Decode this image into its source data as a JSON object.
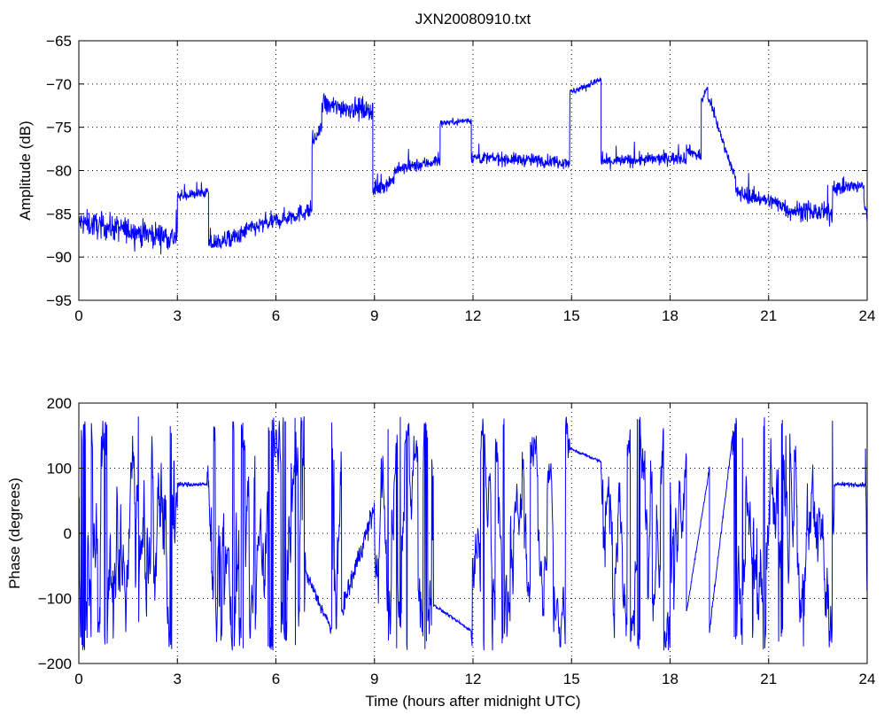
{
  "figure": {
    "title": "JXN20080910.txt"
  },
  "chart_data": [
    {
      "type": "line",
      "title": "JXN20080910.txt",
      "xlabel": "",
      "ylabel": "Amplitude (dB)",
      "xlim": [
        0,
        24
      ],
      "ylim": [
        -95,
        -65
      ],
      "xticks": [
        0,
        3,
        6,
        9,
        12,
        15,
        18,
        21,
        24
      ],
      "yticks": [
        -95,
        -90,
        -85,
        -80,
        -75,
        -70,
        -65
      ],
      "grid": true,
      "line_color": "#0000ff",
      "segments": [
        {
          "x0": 0.0,
          "x1": 3.0,
          "level_start": -86.0,
          "level_end": -87.8,
          "noise": 1.6
        },
        {
          "x0": 3.0,
          "x1": 3.95,
          "level_start": -83.0,
          "level_end": -82.5,
          "noise": 0.6
        },
        {
          "x0": 3.95,
          "x1": 5.0,
          "level_start": -88.5,
          "level_end": -87.5,
          "noise": 1.2
        },
        {
          "x0": 5.0,
          "x1": 7.1,
          "level_start": -87.0,
          "level_end": -84.5,
          "noise": 1.1
        },
        {
          "x0": 7.1,
          "x1": 7.4,
          "level_start": -77.0,
          "level_end": -75.0,
          "noise": 0.8
        },
        {
          "x0": 7.4,
          "x1": 8.95,
          "level_start": -72.5,
          "level_end": -73.0,
          "noise": 1.3
        },
        {
          "x0": 8.95,
          "x1": 9.6,
          "level_start": -82.5,
          "level_end": -81.0,
          "noise": 0.9
        },
        {
          "x0": 9.6,
          "x1": 11.0,
          "level_start": -80.0,
          "level_end": -78.8,
          "noise": 0.8
        },
        {
          "x0": 11.0,
          "x1": 11.95,
          "level_start": -74.5,
          "level_end": -74.2,
          "noise": 0.4
        },
        {
          "x0": 11.95,
          "x1": 14.95,
          "level_start": -78.5,
          "level_end": -79.0,
          "noise": 0.8
        },
        {
          "x0": 14.95,
          "x1": 15.9,
          "level_start": -71.0,
          "level_end": -69.5,
          "noise": 0.4
        },
        {
          "x0": 15.9,
          "x1": 18.5,
          "level_start": -79.0,
          "level_end": -78.5,
          "noise": 0.8
        },
        {
          "x0": 18.5,
          "x1": 18.95,
          "level_start": -77.5,
          "level_end": -78.5,
          "noise": 0.7
        },
        {
          "x0": 18.95,
          "x1": 19.15,
          "level_start": -72.0,
          "level_end": -70.3,
          "noise": 0.5
        },
        {
          "x0": 19.15,
          "x1": 20.0,
          "level_start": -71.5,
          "level_end": -81.0,
          "noise": 0.6
        },
        {
          "x0": 20.0,
          "x1": 21.5,
          "level_start": -82.5,
          "level_end": -84.0,
          "noise": 1.0
        },
        {
          "x0": 21.5,
          "x1": 22.95,
          "level_start": -84.5,
          "level_end": -85.0,
          "noise": 1.2
        },
        {
          "x0": 22.95,
          "x1": 23.9,
          "level_start": -82.0,
          "level_end": -81.8,
          "noise": 0.9
        },
        {
          "x0": 23.9,
          "x1": 24.0,
          "level_start": -83.5,
          "level_end": -85.5,
          "noise": 0.8
        }
      ]
    },
    {
      "type": "line",
      "title": "",
      "xlabel": "Time (hours after midnight UTC)",
      "ylabel": "Phase (degrees)",
      "xlim": [
        0,
        24
      ],
      "ylim": [
        -200,
        200
      ],
      "xticks": [
        0,
        3,
        6,
        9,
        12,
        15,
        18,
        21,
        24
      ],
      "yticks": [
        -200,
        -100,
        0,
        100,
        200
      ],
      "grid": true,
      "line_color": "#0000ff",
      "segments": [
        {
          "x0": 0.0,
          "x1": 3.0,
          "mode": "wrap",
          "rate": 26
        },
        {
          "x0": 3.0,
          "x1": 3.9,
          "mode": "steady",
          "value": 75,
          "noise": 6
        },
        {
          "x0": 3.9,
          "x1": 6.9,
          "mode": "wrap",
          "rate": 18
        },
        {
          "x0": 6.9,
          "x1": 7.7,
          "mode": "drift",
          "from": -60,
          "to": -150,
          "noise": 18
        },
        {
          "x0": 7.7,
          "x1": 8.0,
          "mode": "wrap",
          "rate": 30
        },
        {
          "x0": 8.0,
          "x1": 9.0,
          "mode": "drift",
          "from": -120,
          "to": 40,
          "noise": 30
        },
        {
          "x0": 9.0,
          "x1": 10.8,
          "mode": "wrap",
          "rate": 20
        },
        {
          "x0": 10.8,
          "x1": 11.95,
          "mode": "drift",
          "from": -110,
          "to": -150,
          "noise": 4
        },
        {
          "x0": 11.95,
          "x1": 14.95,
          "mode": "wrap",
          "rate": 16
        },
        {
          "x0": 14.95,
          "x1": 15.9,
          "mode": "drift",
          "from": 130,
          "to": 110,
          "noise": 4
        },
        {
          "x0": 15.9,
          "x1": 18.5,
          "mode": "wrap",
          "rate": 18
        },
        {
          "x0": 18.5,
          "x1": 19.2,
          "mode": "drift",
          "from": -120,
          "to": 100,
          "noise": 6
        },
        {
          "x0": 19.2,
          "x1": 19.9,
          "mode": "drift",
          "from": -150,
          "to": 150,
          "noise": 10
        },
        {
          "x0": 19.9,
          "x1": 23.0,
          "mode": "wrap",
          "rate": 22
        },
        {
          "x0": 23.0,
          "x1": 23.95,
          "mode": "steady",
          "value": 75,
          "noise": 6
        },
        {
          "x0": 23.95,
          "x1": 24.0,
          "mode": "drift",
          "from": 130,
          "to": -120,
          "noise": 20
        }
      ]
    }
  ]
}
